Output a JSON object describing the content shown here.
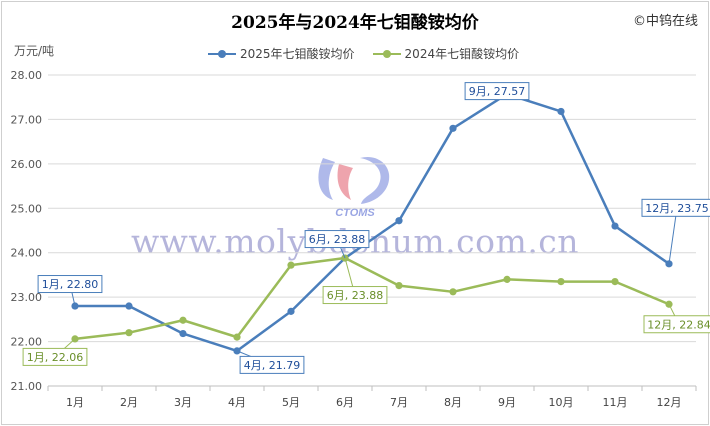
{
  "header": {
    "title": "2025年与2024年七钼酸铵均价",
    "copyright": "©中钨在线",
    "unit": "万元/吨"
  },
  "watermark": {
    "text": "www.molybdenum.com.cn",
    "logo_text": "CTOMS"
  },
  "colors": {
    "series_2025": "#4a7ebb",
    "series_2024": "#9bbb59"
  },
  "chart_data": {
    "type": "line",
    "title": "2025年与2024年七钼酸铵均价",
    "ylabel": "万元/吨",
    "xlabel": "",
    "ylim": [
      21.0,
      28.0
    ],
    "yticks": [
      "21.00",
      "22.00",
      "23.00",
      "24.00",
      "25.00",
      "26.00",
      "27.00",
      "28.00"
    ],
    "grid": true,
    "legend_position": "top",
    "categories": [
      "1月",
      "2月",
      "3月",
      "4月",
      "5月",
      "6月",
      "7月",
      "8月",
      "9月",
      "10月",
      "11月",
      "12月"
    ],
    "series": [
      {
        "name": "2025年七钼酸铵均价",
        "values": [
          22.8,
          22.8,
          22.18,
          21.79,
          22.68,
          23.88,
          24.72,
          26.8,
          27.57,
          27.18,
          24.6,
          23.75
        ]
      },
      {
        "name": "2024年七钼酸铵均价",
        "values": [
          22.06,
          22.2,
          22.48,
          22.1,
          23.72,
          23.88,
          23.26,
          23.12,
          23.4,
          23.35,
          23.35,
          22.84
        ]
      }
    ],
    "annotations": [
      {
        "series": 0,
        "index": 0,
        "text": "1月, 22.80"
      },
      {
        "series": 0,
        "index": 3,
        "text": "4月, 21.79"
      },
      {
        "series": 0,
        "index": 5,
        "text": "6月, 23.88"
      },
      {
        "series": 0,
        "index": 8,
        "text": "9月, 27.57"
      },
      {
        "series": 0,
        "index": 11,
        "text": "12月, 23.75"
      },
      {
        "series": 1,
        "index": 0,
        "text": "1月, 22.06"
      },
      {
        "series": 1,
        "index": 5,
        "text": "6月, 23.88"
      },
      {
        "series": 1,
        "index": 11,
        "text": "12月, 22.84"
      }
    ]
  }
}
